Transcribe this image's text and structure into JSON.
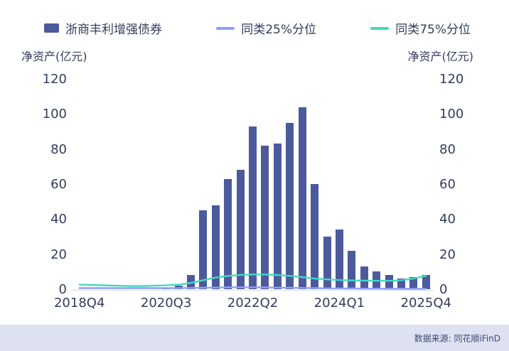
{
  "footer": {
    "source": "数据来源: 同花顺iFinD"
  },
  "colors": {
    "bar": "#4C5A9C",
    "p25_line": "#8F9FF3",
    "p75_line": "#43D8C1",
    "text": "#333C5E",
    "footer_bg": "#DDE1F2",
    "axis_line": "#DADCE6"
  },
  "chart_data": {
    "type": "bar",
    "title": "",
    "ylabel_left": "净资产(亿元)",
    "ylabel_right": "净资产(亿元)",
    "ylim": [
      0,
      120
    ],
    "yticks": [
      0,
      20,
      40,
      60,
      80,
      100,
      120
    ],
    "grid": false,
    "legend_position": "top",
    "categories": [
      "2018Q4",
      "2019Q1",
      "2019Q2",
      "2019Q3",
      "2019Q4",
      "2020Q1",
      "2020Q2",
      "2020Q3",
      "2020Q4",
      "2021Q1",
      "2021Q2",
      "2021Q3",
      "2021Q4",
      "2022Q1",
      "2022Q2",
      "2022Q3",
      "2022Q4",
      "2023Q1",
      "2023Q2",
      "2023Q3",
      "2023Q4",
      "2024Q1",
      "2024Q2",
      "2024Q3",
      "2024Q4",
      "2025Q1",
      "2025Q2",
      "2025Q3",
      "2025Q4"
    ],
    "xtick_indices": [
      0,
      7,
      14,
      21,
      28
    ],
    "xtick_labels": [
      "2018Q4",
      "2020Q3",
      "2022Q2",
      "2024Q1",
      "2025Q4"
    ],
    "series": [
      {
        "name": "浙商丰利增强债券",
        "type": "bar",
        "color": "#4C5A9C",
        "values": [
          0,
          0,
          0,
          0,
          0,
          0,
          0,
          1,
          2,
          8,
          45,
          48,
          63,
          68,
          93,
          82,
          83,
          95,
          104,
          60,
          30,
          34,
          22,
          13,
          10,
          8,
          6,
          7,
          8
        ]
      },
      {
        "name": "同类25%分位",
        "type": "line",
        "color": "#8F9FF3",
        "values": [
          1,
          1,
          1,
          1,
          1,
          1,
          1,
          1,
          1,
          1.1,
          1.2,
          1.3,
          1.5,
          1.5,
          1.5,
          1.4,
          1.3,
          1.2,
          1.1,
          1,
          0.9,
          0.8,
          0.8,
          0.7,
          0.7,
          0.6,
          0.6,
          0.6,
          0.6
        ]
      },
      {
        "name": "同类75%分位",
        "type": "line",
        "color": "#43D8C1",
        "values": [
          3,
          2.8,
          2.6,
          2.4,
          2.2,
          2.2,
          2.4,
          2.6,
          3,
          4,
          5.5,
          7,
          8,
          8.5,
          8.8,
          8.8,
          8.5,
          8,
          7.3,
          6.5,
          6,
          5.6,
          5.4,
          5.3,
          5.2,
          5.2,
          5.5,
          6.5,
          8
        ]
      }
    ]
  }
}
